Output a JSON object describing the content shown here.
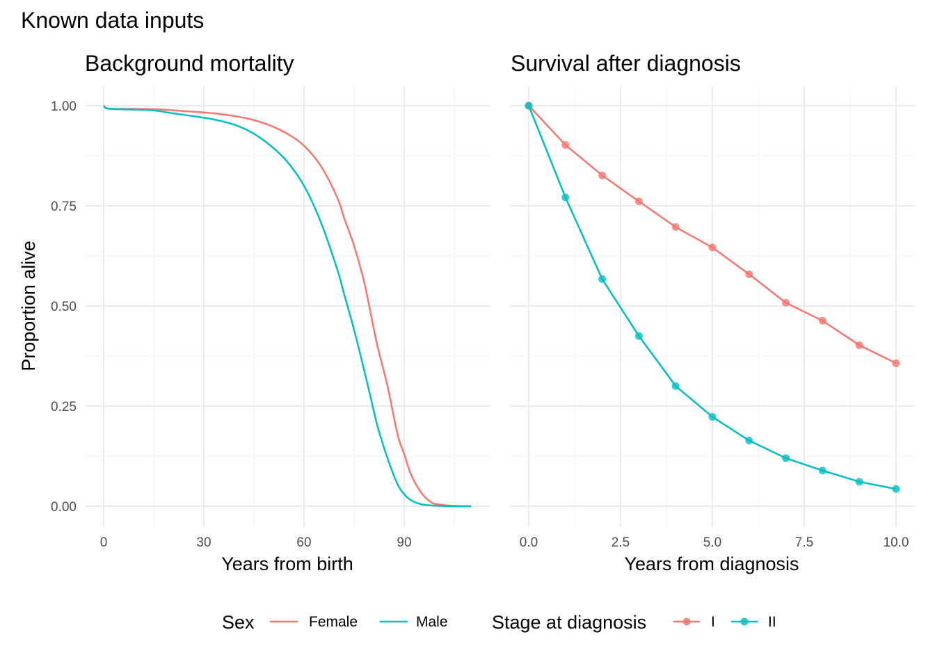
{
  "title": "Known data inputs",
  "y_axis_label": "Proportion alive",
  "colors": {
    "red": "#F8766D",
    "teal": "#00BFC4"
  },
  "legends": [
    {
      "title": "Sex",
      "entries": [
        {
          "label": "Female",
          "color": "#F8766D"
        },
        {
          "label": "Male",
          "color": "#00BFC4"
        }
      ],
      "marker": "line"
    },
    {
      "title": "Stage at diagnosis",
      "entries": [
        {
          "label": "I",
          "color": "#F8766D"
        },
        {
          "label": "II",
          "color": "#00BFC4"
        }
      ],
      "marker": "line-point"
    }
  ],
  "chart_data": [
    {
      "type": "line",
      "title": "Background mortality",
      "xlabel": "Years from birth",
      "ylabel": "Proportion alive",
      "xlim": [
        0,
        110
      ],
      "ylim": [
        0,
        1
      ],
      "x_ticks": [
        0,
        30,
        60,
        90
      ],
      "x_tick_labels": [
        "0",
        "30",
        "60",
        "90"
      ],
      "y_ticks": [
        0,
        0.25,
        0.5,
        0.75,
        1
      ],
      "y_tick_labels": [
        "0.00",
        "0.25",
        "0.50",
        "0.75",
        "1.00"
      ],
      "grid": true,
      "legend": "bottom",
      "series": [
        {
          "name": "Female",
          "color": "#F8766D",
          "x": [
            0,
            1,
            5,
            10,
            15,
            20,
            25,
            30,
            35,
            40,
            45,
            50,
            55,
            60,
            65,
            70,
            72,
            75,
            78,
            80,
            82,
            85,
            88,
            90,
            92,
            95,
            98,
            100,
            103,
            105,
            108,
            110
          ],
          "y": [
            1.0,
            0.993,
            0.992,
            0.992,
            0.991,
            0.989,
            0.986,
            0.983,
            0.979,
            0.973,
            0.964,
            0.95,
            0.93,
            0.9,
            0.85,
            0.77,
            0.72,
            0.65,
            0.56,
            0.48,
            0.4,
            0.3,
            0.18,
            0.13,
            0.08,
            0.035,
            0.01,
            0.005,
            0.002,
            0.001,
            0.0,
            0.0
          ]
        },
        {
          "name": "Male",
          "color": "#00BFC4",
          "x": [
            0,
            1,
            5,
            10,
            15,
            20,
            25,
            30,
            35,
            40,
            45,
            50,
            55,
            60,
            65,
            70,
            72,
            75,
            78,
            80,
            82,
            85,
            88,
            90,
            92,
            95,
            98,
            100,
            103,
            105,
            108,
            110
          ],
          "y": [
            1.0,
            0.993,
            0.991,
            0.99,
            0.988,
            0.982,
            0.976,
            0.97,
            0.962,
            0.95,
            0.93,
            0.9,
            0.86,
            0.8,
            0.71,
            0.59,
            0.53,
            0.44,
            0.34,
            0.27,
            0.2,
            0.12,
            0.055,
            0.03,
            0.015,
            0.005,
            0.002,
            0.001,
            0.0,
            0.0,
            0.0,
            0.0
          ]
        }
      ]
    },
    {
      "type": "line",
      "title": "Survival after diagnosis",
      "xlabel": "Years from diagnosis",
      "ylabel": "Proportion alive",
      "xlim": [
        0,
        10
      ],
      "ylim": [
        0,
        1
      ],
      "x_ticks": [
        0,
        2.5,
        5,
        7.5,
        10
      ],
      "x_tick_labels": [
        "0.0",
        "2.5",
        "5.0",
        "7.5",
        "10.0"
      ],
      "y_ticks": [
        0,
        0.25,
        0.5,
        0.75,
        1
      ],
      "grid": true,
      "legend": "bottom",
      "markers": true,
      "series": [
        {
          "name": "I",
          "color": "#F8766D",
          "x": [
            0,
            1,
            2,
            3,
            4,
            5,
            6,
            7,
            8,
            9,
            10
          ],
          "y": [
            1.0,
            0.902,
            0.826,
            0.761,
            0.697,
            0.646,
            0.579,
            0.508,
            0.463,
            0.402,
            0.357
          ]
        },
        {
          "name": "II",
          "color": "#00BFC4",
          "x": [
            0,
            1,
            2,
            3,
            4,
            5,
            6,
            7,
            8,
            9,
            10
          ],
          "y": [
            1.0,
            0.771,
            0.567,
            0.425,
            0.3,
            0.223,
            0.164,
            0.12,
            0.089,
            0.061,
            0.043
          ]
        }
      ]
    }
  ]
}
